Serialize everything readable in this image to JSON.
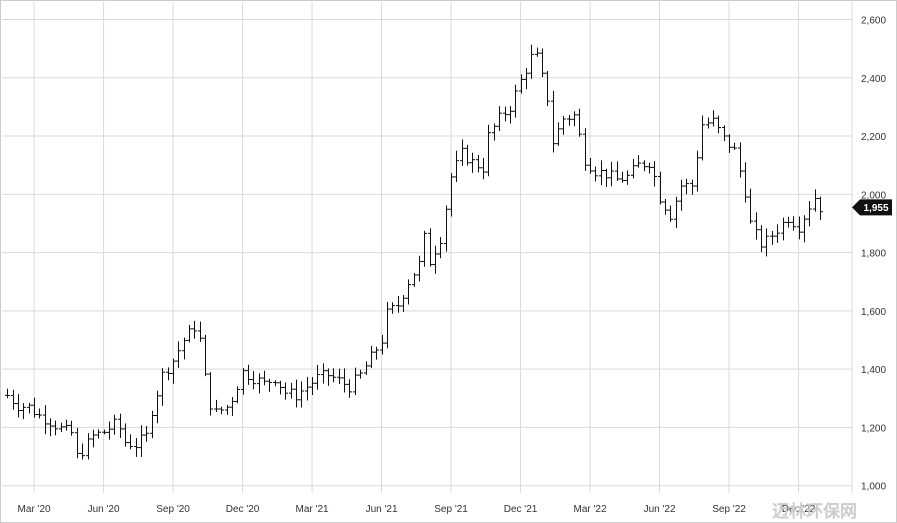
{
  "chart_data": {
    "type": "ohlc",
    "title": "",
    "xlabel": "",
    "ylabel": "",
    "ylim": [
      975,
      2660
    ],
    "grid": true,
    "y_ticks": [
      "1,000",
      "1,200",
      "1,400",
      "1,600",
      "1,800",
      "2,000",
      "2,200",
      "2,400",
      "2,600"
    ],
    "y_tick_values": [
      1000,
      1200,
      1400,
      1600,
      1800,
      2000,
      2200,
      2400,
      2600
    ],
    "x_ticks": [
      {
        "label": "Mar '20",
        "week": 1
      },
      {
        "label": "Jun '20",
        "week": 14
      },
      {
        "label": "Sep '20",
        "week": 27
      },
      {
        "label": "Dec '20",
        "week": 40
      },
      {
        "label": "Mar '21",
        "week": 53
      },
      {
        "label": "Jun '21",
        "week": 66
      },
      {
        "label": "Sep '21",
        "week": 79
      },
      {
        "label": "Dec '21",
        "week": 92
      },
      {
        "label": "Mar '22",
        "week": 105
      },
      {
        "label": "Jun '22",
        "week": 118
      },
      {
        "label": "Sep '22",
        "week": 131
      },
      {
        "label": "Dec '22",
        "week": 144
      }
    ],
    "week_range": [
      -5,
      154
    ],
    "last_price_label": "1,955",
    "last_price": 1955,
    "close_path": [
      [
        -4,
        1310
      ],
      [
        -2,
        1275
      ],
      [
        0,
        1270
      ],
      [
        2,
        1240
      ],
      [
        4,
        1220
      ],
      [
        6,
        1195
      ],
      [
        8,
        1180
      ],
      [
        9,
        1100
      ],
      [
        10,
        1120
      ],
      [
        12,
        1170
      ],
      [
        14,
        1185
      ],
      [
        16,
        1210
      ],
      [
        17,
        1195
      ],
      [
        18,
        1150
      ],
      [
        20,
        1140
      ],
      [
        22,
        1170
      ],
      [
        23,
        1260
      ],
      [
        25,
        1380
      ],
      [
        27,
        1430
      ],
      [
        29,
        1500
      ],
      [
        31,
        1545
      ],
      [
        32,
        1500
      ],
      [
        33,
        1370
      ],
      [
        34,
        1280
      ],
      [
        35,
        1250
      ],
      [
        37,
        1270
      ],
      [
        38,
        1300
      ],
      [
        40,
        1390
      ],
      [
        42,
        1370
      ],
      [
        44,
        1350
      ],
      [
        46,
        1370
      ],
      [
        48,
        1320
      ],
      [
        50,
        1310
      ],
      [
        52,
        1340
      ],
      [
        54,
        1370
      ],
      [
        56,
        1380
      ],
      [
        58,
        1360
      ],
      [
        60,
        1340
      ],
      [
        62,
        1380
      ],
      [
        64,
        1440
      ],
      [
        66,
        1500
      ],
      [
        67,
        1590
      ],
      [
        69,
        1620
      ],
      [
        71,
        1700
      ],
      [
        73,
        1760
      ],
      [
        74,
        1850
      ],
      [
        75,
        1770
      ],
      [
        77,
        1850
      ],
      [
        79,
        2060
      ],
      [
        81,
        2140
      ],
      [
        83,
        2110
      ],
      [
        85,
        2090
      ],
      [
        86,
        2200
      ],
      [
        88,
        2260
      ],
      [
        90,
        2300
      ],
      [
        92,
        2390
      ],
      [
        94,
        2470
      ],
      [
        95,
        2470
      ],
      [
        96,
        2400
      ],
      [
        97,
        2330
      ],
      [
        98,
        2180
      ],
      [
        100,
        2260
      ],
      [
        102,
        2270
      ],
      [
        103,
        2200
      ],
      [
        104,
        2120
      ],
      [
        106,
        2080
      ],
      [
        108,
        2070
      ],
      [
        110,
        2050
      ],
      [
        112,
        2060
      ],
      [
        114,
        2100
      ],
      [
        116,
        2110
      ],
      [
        117,
        2060
      ],
      [
        118,
        1990
      ],
      [
        120,
        1930
      ],
      [
        122,
        2030
      ],
      [
        124,
        2030
      ],
      [
        126,
        2240
      ],
      [
        128,
        2250
      ],
      [
        130,
        2190
      ],
      [
        132,
        2150
      ],
      [
        134,
        2010
      ],
      [
        135,
        1900
      ],
      [
        136,
        1860
      ],
      [
        137,
        1830
      ],
      [
        138,
        1840
      ],
      [
        140,
        1880
      ],
      [
        142,
        1920
      ],
      [
        144,
        1890
      ],
      [
        146,
        1960
      ],
      [
        147,
        1990
      ],
      [
        148,
        1955
      ]
    ]
  },
  "watermark": {
    "text": "迈林环保网"
  }
}
